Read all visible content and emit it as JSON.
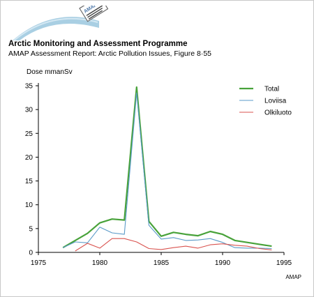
{
  "header": {
    "org_title": "Arctic Monitoring and Assessment Programme",
    "report_title": "AMAP Assessment Report: Arctic Pollution Issues, Figure 8·55",
    "logo_text": "AMAP"
  },
  "footer": {
    "credit": "AMAP"
  },
  "colors": {
    "arc": "#a9cfe3",
    "total": "#48a23a",
    "loviisa": "#5a9ac8",
    "olkiluoto": "#d9534f",
    "axis": "#000000"
  },
  "chart_data": {
    "type": "line",
    "ylabel": "Dose mmanSv",
    "xlabel": "",
    "xlim": [
      1975,
      1995
    ],
    "ylim": [
      0,
      35
    ],
    "x_ticks": [
      1975,
      1980,
      1985,
      1990,
      1995
    ],
    "y_ticks": [
      0,
      5,
      10,
      15,
      20,
      25,
      30,
      35
    ],
    "legend_position": "top-right",
    "series": [
      {
        "name": "Total",
        "color": "#48a23a",
        "x": [
          1977,
          1978,
          1979,
          1980,
          1981,
          1982,
          1983,
          1984,
          1985,
          1986,
          1987,
          1988,
          1989,
          1990,
          1991,
          1992,
          1993,
          1994
        ],
        "y": [
          1.0,
          2.5,
          4.0,
          6.2,
          7.0,
          6.8,
          34.7,
          6.5,
          3.4,
          4.2,
          3.8,
          3.5,
          4.4,
          3.8,
          2.5,
          2.1,
          1.7,
          1.3
        ]
      },
      {
        "name": "Loviisa",
        "color": "#5a9ac8",
        "x": [
          1977,
          1978,
          1979,
          1980,
          1981,
          1982,
          1983,
          1984,
          1985,
          1986,
          1987,
          1988,
          1989,
          1990,
          1991,
          1992,
          1993,
          1994
        ],
        "y": [
          1.0,
          2.2,
          2.0,
          5.3,
          4.1,
          3.8,
          33.5,
          5.7,
          2.8,
          3.1,
          2.5,
          2.6,
          2.9,
          2.1,
          1.0,
          0.9,
          0.9,
          0.8
        ]
      },
      {
        "name": "Olkiluoto",
        "color": "#d9534f",
        "x": [
          1978,
          1979,
          1980,
          1981,
          1982,
          1983,
          1984,
          1985,
          1986,
          1987,
          1988,
          1989,
          1990,
          1991,
          1992,
          1993,
          1994
        ],
        "y": [
          0.3,
          1.9,
          0.9,
          2.9,
          2.9,
          2.2,
          0.8,
          0.6,
          1.0,
          1.3,
          0.9,
          1.6,
          1.8,
          1.5,
          1.3,
          0.8,
          0.5
        ]
      }
    ]
  }
}
